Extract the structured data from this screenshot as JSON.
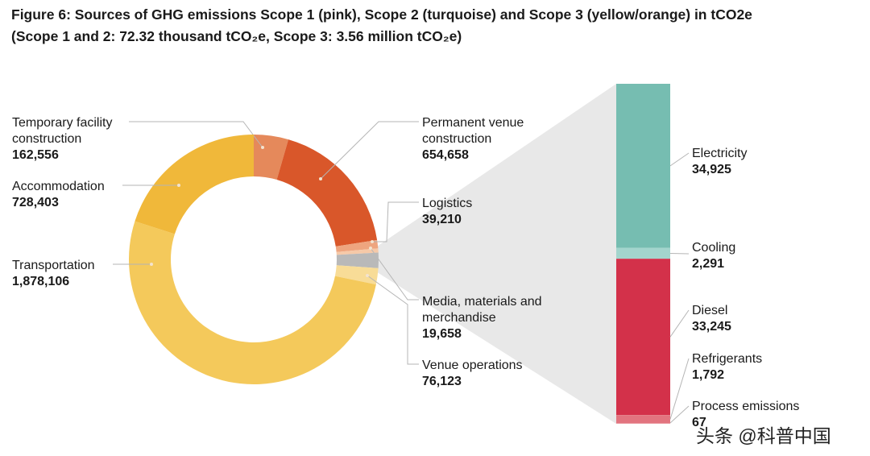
{
  "title": "Figure 6: Sources of GHG emissions Scope 1 (pink), Scope 2 (turquoise) and Scope 3 (yellow/orange) in tCO2e",
  "subtitle": "(Scope 1 and 2: 72.32 thousand tCO₂e, Scope 3: 3.56 million tCO₂e)",
  "watermark": "头条 @科普中国",
  "chart_data": [
    {
      "type": "pie",
      "categories": [
        "Temporary facility construction",
        "Permanent venue construction",
        "Logistics",
        "Media, materials and merchandise",
        null,
        "Venue operations",
        "Transportation",
        "Accommodation"
      ],
      "values": [
        162556,
        654658,
        39210,
        19658,
        72320,
        76123,
        1878106,
        728403
      ],
      "value_labels": [
        "162,556",
        "654,658",
        "39,210",
        "19,658",
        null,
        "76,123",
        "1,878,106",
        "728,403"
      ],
      "colors": [
        "#e5895b",
        "#d9572a",
        "#eea57f",
        "#f6c9a8",
        "#b9b9b9",
        "#f8dc97",
        "#f4c95b",
        "#f0b83a"
      ]
    },
    {
      "type": "stacked-bar",
      "categories": [
        "Electricity",
        "Cooling",
        "Diesel",
        "Refrigerants",
        "Process emissions"
      ],
      "values": [
        34925,
        2291,
        33245,
        1792,
        67
      ],
      "value_labels": [
        "34,925",
        "2,291",
        "33,245",
        "1,792",
        "67"
      ],
      "colors": [
        "#76bdb1",
        "#a3d5cd",
        "#d3314a",
        "#e2747f",
        "#f2b3b8"
      ]
    }
  ]
}
